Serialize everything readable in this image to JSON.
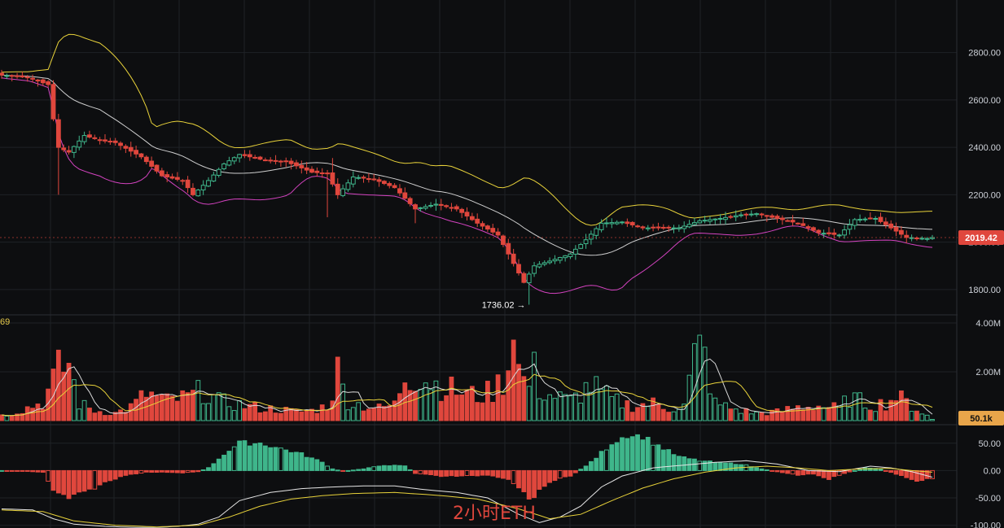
{
  "chart_data": {
    "type": "candlestick",
    "watermark": "2小时ETH",
    "colors": {
      "up": "#3fb68b",
      "down": "#e0473d",
      "bb_upper": "#e8d23a",
      "bb_mid": "#cfcfcf",
      "bb_lower": "#d443c0",
      "macd_dif": "#e6e6e6",
      "macd_dea": "#e8d23a",
      "background": "#0d0e10",
      "grid": "#1f2226",
      "price_tag": "#e0473d",
      "vol_tag": "#e8a54a"
    },
    "price": {
      "ylim": [
        1700,
        2960
      ],
      "ticks": [
        1800,
        2000,
        2200,
        2400,
        2600,
        2800
      ],
      "tick_labels": [
        "1800.00",
        "2000.00",
        "2200.00",
        "2400.00",
        "2600.00",
        "2800.00"
      ],
      "last_label": "2019.42",
      "last_value": 2019.42,
      "low_label": "1736.02",
      "low_value": 1736.02,
      "low_arrow": "→",
      "low_index": 102
    },
    "volume": {
      "ylim": [
        0,
        4300000
      ],
      "ticks": [
        2000000,
        4000000
      ],
      "tick_labels": [
        "2.00M",
        "4.00M"
      ],
      "last_label": "50.1k",
      "indicator_label": "69"
    },
    "macd": {
      "ylim": [
        -105,
        75
      ],
      "ticks": [
        50,
        0,
        -50,
        -100
      ],
      "tick_labels": [
        "50.00",
        "0.00",
        "-50.00",
        "-100.00"
      ]
    },
    "price_anchors": [
      [
        0,
        2705
      ],
      [
        5,
        2695
      ],
      [
        9,
        2665
      ],
      [
        10,
        2520
      ],
      [
        11,
        2400
      ],
      [
        13,
        2380
      ],
      [
        16,
        2450
      ],
      [
        19,
        2430
      ],
      [
        22,
        2420
      ],
      [
        27,
        2360
      ],
      [
        31,
        2280
      ],
      [
        35,
        2260
      ],
      [
        37,
        2200
      ],
      [
        40,
        2260
      ],
      [
        43,
        2330
      ],
      [
        46,
        2370
      ],
      [
        51,
        2345
      ],
      [
        55,
        2340
      ],
      [
        60,
        2295
      ],
      [
        63,
        2290
      ],
      [
        65,
        2200
      ],
      [
        68,
        2275
      ],
      [
        72,
        2265
      ],
      [
        76,
        2230
      ],
      [
        80,
        2140
      ],
      [
        84,
        2160
      ],
      [
        88,
        2140
      ],
      [
        92,
        2080
      ],
      [
        96,
        2030
      ],
      [
        99,
        1910
      ],
      [
        101,
        1830
      ],
      [
        103,
        1900
      ],
      [
        106,
        1920
      ],
      [
        110,
        1950
      ],
      [
        113,
        2010
      ],
      [
        116,
        2080
      ],
      [
        120,
        2085
      ],
      [
        124,
        2060
      ],
      [
        128,
        2060
      ],
      [
        131,
        2060
      ],
      [
        135,
        2090
      ],
      [
        139,
        2100
      ],
      [
        143,
        2115
      ],
      [
        146,
        2120
      ],
      [
        150,
        2100
      ],
      [
        154,
        2080
      ],
      [
        158,
        2040
      ],
      [
        162,
        2030
      ],
      [
        165,
        2095
      ],
      [
        169,
        2100
      ],
      [
        172,
        2060
      ],
      [
        175,
        2020
      ],
      [
        179,
        2015
      ],
      [
        180,
        2019.42
      ]
    ],
    "volume_anchors": [
      [
        0,
        200000
      ],
      [
        4,
        450000
      ],
      [
        8,
        750000
      ],
      [
        11,
        2050000
      ],
      [
        13,
        2300000
      ],
      [
        15,
        700000
      ],
      [
        18,
        400000
      ],
      [
        22,
        300000
      ],
      [
        25,
        550000
      ],
      [
        28,
        1100000
      ],
      [
        32,
        800000
      ],
      [
        36,
        950000
      ],
      [
        39,
        1250000
      ],
      [
        42,
        800000
      ],
      [
        46,
        650000
      ],
      [
        50,
        500000
      ],
      [
        54,
        450000
      ],
      [
        57,
        350000
      ],
      [
        60,
        400000
      ],
      [
        63,
        600000
      ],
      [
        65,
        1800000
      ],
      [
        67,
        800000
      ],
      [
        70,
        600000
      ],
      [
        73,
        500000
      ],
      [
        76,
        650000
      ],
      [
        78,
        1900000
      ],
      [
        81,
        1800000
      ],
      [
        84,
        1500000
      ],
      [
        88,
        1200000
      ],
      [
        92,
        1000000
      ],
      [
        95,
        1200000
      ],
      [
        97,
        1700000
      ],
      [
        99,
        2700000
      ],
      [
        101,
        1600000
      ],
      [
        103,
        1400000
      ],
      [
        106,
        1050000
      ],
      [
        110,
        800000
      ],
      [
        114,
        1450000
      ],
      [
        118,
        850000
      ],
      [
        122,
        600000
      ],
      [
        126,
        700000
      ],
      [
        129,
        500000
      ],
      [
        132,
        600000
      ],
      [
        135,
        3500000
      ],
      [
        138,
        700000
      ],
      [
        142,
        450000
      ],
      [
        146,
        300000
      ],
      [
        150,
        350000
      ],
      [
        154,
        550000
      ],
      [
        158,
        600000
      ],
      [
        162,
        500000
      ],
      [
        164,
        950000
      ],
      [
        168,
        650000
      ],
      [
        171,
        700000
      ],
      [
        173,
        1000000
      ],
      [
        176,
        600000
      ],
      [
        179,
        200000
      ],
      [
        180,
        50100
      ]
    ],
    "macd_anchors": [
      [
        0,
        0
      ],
      [
        4,
        -1
      ],
      [
        8,
        -3
      ],
      [
        10,
        -38
      ],
      [
        13,
        -50
      ],
      [
        16,
        -40
      ],
      [
        20,
        -22
      ],
      [
        24,
        -8
      ],
      [
        28,
        -3
      ],
      [
        32,
        -3
      ],
      [
        35,
        -4
      ],
      [
        38,
        -2
      ],
      [
        40,
        5
      ],
      [
        43,
        30
      ],
      [
        46,
        50
      ],
      [
        50,
        50
      ],
      [
        54,
        40
      ],
      [
        58,
        30
      ],
      [
        62,
        15
      ],
      [
        64,
        3
      ],
      [
        66,
        -1
      ],
      [
        70,
        3
      ],
      [
        74,
        10
      ],
      [
        78,
        8
      ],
      [
        80,
        -5
      ],
      [
        85,
        -10
      ],
      [
        90,
        -10
      ],
      [
        94,
        -8
      ],
      [
        98,
        -15
      ],
      [
        100,
        -30
      ],
      [
        102,
        -52
      ],
      [
        104,
        -38
      ],
      [
        106,
        -20
      ],
      [
        110,
        -10
      ],
      [
        114,
        15
      ],
      [
        118,
        50
      ],
      [
        121,
        65
      ],
      [
        124,
        62
      ],
      [
        128,
        40
      ],
      [
        131,
        25
      ],
      [
        135,
        18
      ],
      [
        139,
        14
      ],
      [
        143,
        12
      ],
      [
        146,
        5
      ],
      [
        150,
        -2
      ],
      [
        154,
        -8
      ],
      [
        157,
        -6
      ],
      [
        160,
        -15
      ],
      [
        163,
        -5
      ],
      [
        167,
        5
      ],
      [
        170,
        3
      ],
      [
        174,
        -10
      ],
      [
        177,
        -18
      ],
      [
        180,
        -15
      ]
    ],
    "dif_anchors": [
      [
        0,
        -70
      ],
      [
        6,
        -72
      ],
      [
        10,
        -88
      ],
      [
        14,
        -98
      ],
      [
        20,
        -102
      ],
      [
        26,
        -104
      ],
      [
        30,
        -104
      ],
      [
        34,
        -102
      ],
      [
        38,
        -98
      ],
      [
        42,
        -85
      ],
      [
        46,
        -55
      ],
      [
        52,
        -40
      ],
      [
        58,
        -33
      ],
      [
        64,
        -30
      ],
      [
        70,
        -28
      ],
      [
        76,
        -28
      ],
      [
        82,
        -35
      ],
      [
        88,
        -40
      ],
      [
        94,
        -50
      ],
      [
        100,
        -80
      ],
      [
        104,
        -95
      ],
      [
        108,
        -85
      ],
      [
        112,
        -65
      ],
      [
        116,
        -30
      ],
      [
        120,
        -10
      ],
      [
        126,
        5
      ],
      [
        132,
        10
      ],
      [
        138,
        15
      ],
      [
        144,
        18
      ],
      [
        150,
        12
      ],
      [
        156,
        0
      ],
      [
        162,
        -2
      ],
      [
        168,
        8
      ],
      [
        172,
        5
      ],
      [
        176,
        -2
      ],
      [
        180,
        -12
      ]
    ],
    "dea_anchors": [
      [
        0,
        -72
      ],
      [
        8,
        -75
      ],
      [
        14,
        -92
      ],
      [
        22,
        -100
      ],
      [
        30,
        -103
      ],
      [
        38,
        -100
      ],
      [
        44,
        -85
      ],
      [
        50,
        -65
      ],
      [
        56,
        -52
      ],
      [
        62,
        -46
      ],
      [
        68,
        -42
      ],
      [
        76,
        -40
      ],
      [
        84,
        -45
      ],
      [
        92,
        -52
      ],
      [
        100,
        -70
      ],
      [
        106,
        -88
      ],
      [
        112,
        -80
      ],
      [
        118,
        -55
      ],
      [
        124,
        -32
      ],
      [
        130,
        -15
      ],
      [
        136,
        -3
      ],
      [
        142,
        5
      ],
      [
        148,
        8
      ],
      [
        154,
        5
      ],
      [
        160,
        0
      ],
      [
        166,
        3
      ],
      [
        172,
        4
      ],
      [
        176,
        0
      ],
      [
        180,
        -3
      ]
    ],
    "candle_count": 181
  }
}
